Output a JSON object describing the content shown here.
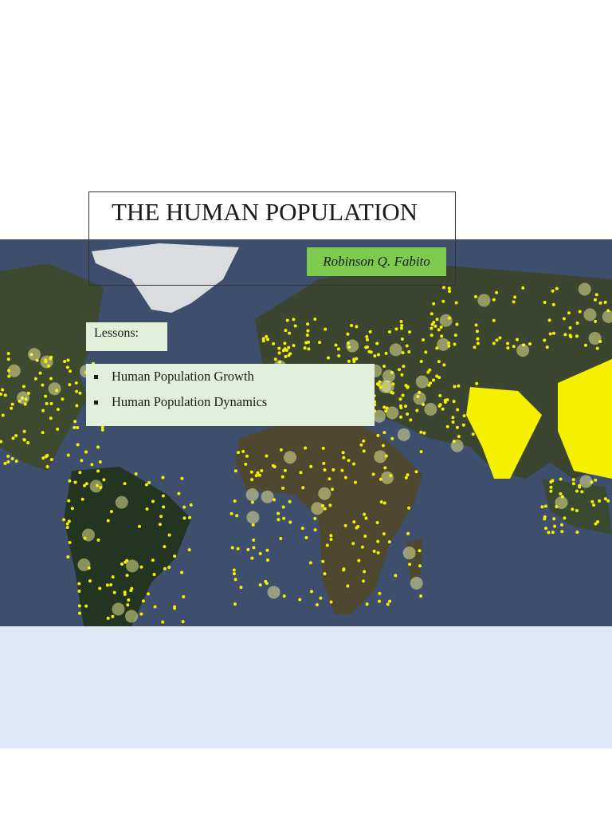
{
  "title": "THE HUMAN POPULATION",
  "author": "Robinson Q. Fabito",
  "lessons": {
    "label": "Lessons:",
    "items": [
      "Human Population Growth",
      "Human Population Dynamics"
    ]
  }
}
